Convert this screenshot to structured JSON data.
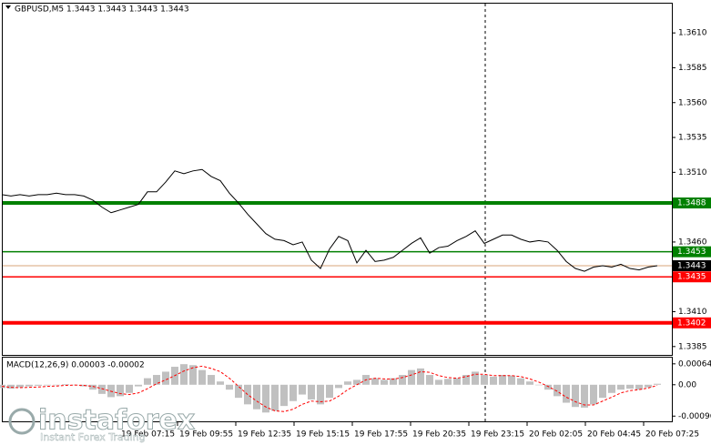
{
  "chart_data": [
    {
      "type": "line",
      "title": "GBPUSD,M5  1.3443 1.3443 1.3443 1.3443",
      "color": "#000000",
      "x_labels": [
        "19 Feb 07:15",
        "19 Feb 09:55",
        "19 Feb 12:35",
        "19 Feb 15:15",
        "19 Feb 17:55",
        "19 Feb 20:35",
        "19 Feb 23:15",
        "20 Feb 02:05",
        "20 Feb 04:45",
        "20 Feb 07:25"
      ],
      "values": [
        1.3494,
        1.3493,
        1.3494,
        1.3493,
        1.3494,
        1.3494,
        1.3495,
        1.3494,
        1.3494,
        1.3493,
        1.349,
        1.3485,
        1.3481,
        1.3483,
        1.3485,
        1.3487,
        1.3496,
        1.3496,
        1.3503,
        1.3511,
        1.3509,
        1.3511,
        1.3512,
        1.3507,
        1.3504,
        1.3495,
        1.3488,
        1.348,
        1.3473,
        1.3466,
        1.3462,
        1.3461,
        1.3458,
        1.346,
        1.3447,
        1.3441,
        1.3455,
        1.3464,
        1.3461,
        1.3445,
        1.3454,
        1.3446,
        1.3447,
        1.3449,
        1.3454,
        1.3459,
        1.3463,
        1.3452,
        1.3456,
        1.3457,
        1.3461,
        1.3464,
        1.3468,
        1.3459,
        1.3462,
        1.3465,
        1.3465,
        1.3462,
        1.346,
        1.3461,
        1.346,
        1.3454,
        1.3446,
        1.3441,
        1.3439,
        1.3442,
        1.3443,
        1.3442,
        1.3444,
        1.3441,
        1.344,
        1.3442,
        1.3443
      ],
      "ylim": [
        1.3379,
        1.3631
      ],
      "yticks": [
        {
          "value": 1.361,
          "label": "1.3610"
        },
        {
          "value": 1.3585,
          "label": "1.3585"
        },
        {
          "value": 1.356,
          "label": "1.3560"
        },
        {
          "value": 1.3535,
          "label": "1.3535"
        },
        {
          "value": 1.351,
          "label": "1.3510"
        },
        {
          "value": 1.346,
          "label": "1.3460"
        },
        {
          "value": 1.341,
          "label": "1.3410"
        },
        {
          "value": 1.3385,
          "label": "1.3385"
        }
      ],
      "levels": [
        {
          "value": 1.3488,
          "color": "#008000",
          "width": 4
        },
        {
          "value": 1.3453,
          "color": "#008000",
          "width": 1.5
        },
        {
          "value": 1.3443,
          "color": "#000000",
          "line_color": "#d9a47a",
          "width": 1
        },
        {
          "value": 1.3435,
          "color": "#ff0000",
          "width": 1.5
        },
        {
          "value": 1.3402,
          "color": "#ff0000",
          "width": 4
        }
      ]
    },
    {
      "type": "macd",
      "title": "MACD(12,26,9) 0.00003 -0.00002",
      "ylim": [
        -0.00112,
        0.00083
      ],
      "yticks": [
        0.00064,
        {
          "value": 0,
          "label": "0.00"
        },
        -0.00096
      ],
      "series": [
        {
          "color": "#c0c0c0",
          "style": "bar",
          "values": [
            -0.0001,
            -0.00012,
            -8e-05,
            -5e-05,
            -3e-05,
            -2e-05,
            0,
            2e-05,
            0,
            -5e-05,
            -0.00015,
            -0.00028,
            -0.00038,
            -0.00035,
            -0.00025,
            -5e-05,
            0.0002,
            0.0003,
            0.0004,
            0.00055,
            0.00063,
            0.0006,
            0.00045,
            0.0003,
            0.0001,
            -0.00015,
            -0.0004,
            -0.0006,
            -0.00075,
            -0.00085,
            -0.0008,
            -0.00065,
            -0.0005,
            -0.0003,
            -0.00045,
            -0.0006,
            -0.0004,
            -0.0001,
            0.0001,
            0.00015,
            0.0003,
            0.0002,
            0.00015,
            0.0002,
            0.0003,
            0.00045,
            0.0005,
            0.0003,
            0.00015,
            0.00018,
            0.0002,
            0.0003,
            0.0004,
            0.0003,
            0.00025,
            0.0003,
            0.00028,
            0.0002,
            0.0001,
            0,
            -0.00015,
            -0.00035,
            -0.00055,
            -0.00068,
            -0.0007,
            -0.0006,
            -0.0004,
            -0.00025,
            -0.00015,
            -0.00012,
            -0.00015,
            -8e-05,
            3e-05
          ]
        },
        {
          "color": "#ff0000",
          "style": "dashed",
          "values": [
            -5e-05,
            -8e-05,
            -9e-05,
            -8e-05,
            -7e-05,
            -5e-05,
            -4e-05,
            -2e-05,
            -1e-05,
            -2e-05,
            -5e-05,
            -0.00012,
            -0.0002,
            -0.00027,
            -0.0003,
            -0.00025,
            -0.00012,
            3e-05,
            0.00015,
            0.00028,
            0.00042,
            0.00052,
            0.00057,
            0.0005,
            0.0004,
            0.0002,
            -5e-05,
            -0.0003,
            -0.0005,
            -0.00068,
            -0.0008,
            -0.00082,
            -0.00075,
            -0.0006,
            -0.0005,
            -0.00052,
            -0.0005,
            -0.00035,
            -0.00015,
            0,
            0.00015,
            0.0002,
            0.00018,
            0.00017,
            0.00022,
            0.0003,
            0.0004,
            0.00038,
            0.00028,
            0.00022,
            0.0002,
            0.00025,
            0.00032,
            0.00032,
            0.00028,
            0.00028,
            0.00028,
            0.00025,
            0.00018,
            8e-05,
            -5e-05,
            -0.0002,
            -0.00038,
            -0.00052,
            -0.00062,
            -0.00062,
            -0.0005,
            -0.00038,
            -0.00025,
            -0.00018,
            -0.00015,
            -0.0001,
            -2e-05
          ]
        }
      ]
    }
  ],
  "watermark": {
    "brand": "instaforex",
    "slogan": "Instant Forex Trading"
  }
}
